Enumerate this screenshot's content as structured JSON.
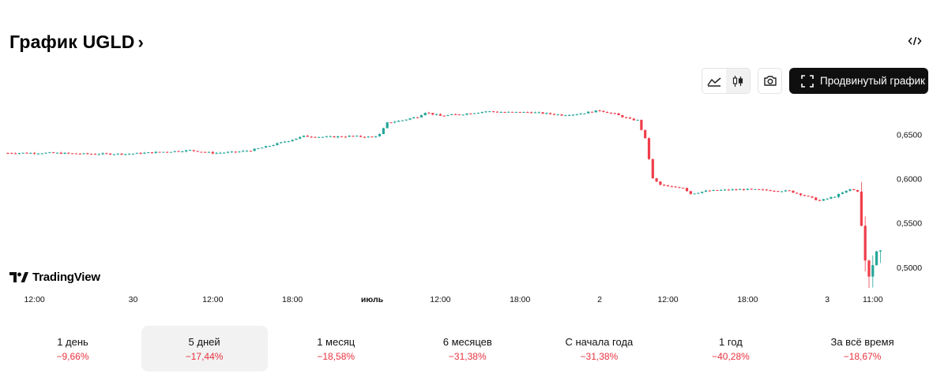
{
  "header": {
    "title": "График UGLD",
    "title_chevron": "›"
  },
  "toolbar": {
    "area_icon": "area-chart-icon",
    "candles_icon": "candlestick-icon",
    "screenshot_icon": "camera-icon",
    "advanced_label": "Продвинутый график",
    "advanced_icon": "fullscreen-icon",
    "embed_icon": "code-embed-icon"
  },
  "branding": {
    "name": "TradingView"
  },
  "colors": {
    "up": "#26a69a",
    "down": "#ef3d4a",
    "loss_text": "#e8323f",
    "accent_dark": "#0f0f10"
  },
  "chart_data": {
    "type": "candlestick",
    "title": "",
    "xlabel": "",
    "ylabel": "",
    "ylim": [
      0.474,
      0.686
    ],
    "yticks": [
      0.5,
      0.55,
      0.6,
      0.65
    ],
    "ytick_labels": [
      "0,5000",
      "0,5500",
      "0,6000",
      "0,6500"
    ],
    "xtick_labels": [
      "12:00",
      "30",
      "12:00",
      "18:00",
      "июль",
      "12:00",
      "18:00",
      "2",
      "12:00",
      "18:00",
      "3",
      "11:00"
    ],
    "xtick_positions": [
      0.5,
      13.5,
      24,
      34.5,
      45,
      54,
      64.5,
      75,
      84,
      94.5,
      105,
      111
    ],
    "x_range": [
      -3,
      113
    ],
    "line_points": [
      [
        -3,
        0.629
      ],
      [
        0,
        0.629
      ],
      [
        3,
        0.629
      ],
      [
        7,
        0.628
      ],
      [
        13,
        0.628
      ],
      [
        17,
        0.63
      ],
      [
        21,
        0.632
      ],
      [
        24,
        0.629
      ],
      [
        27,
        0.63
      ],
      [
        29,
        0.632
      ],
      [
        31,
        0.636
      ],
      [
        34,
        0.643
      ],
      [
        36,
        0.648
      ],
      [
        39,
        0.647
      ],
      [
        42,
        0.648
      ],
      [
        45,
        0.647
      ],
      [
        46,
        0.65
      ],
      [
        47,
        0.663
      ],
      [
        49,
        0.666
      ],
      [
        51,
        0.67
      ],
      [
        52,
        0.675
      ],
      [
        54,
        0.671
      ],
      [
        57,
        0.673
      ],
      [
        60,
        0.676
      ],
      [
        63,
        0.675
      ],
      [
        66,
        0.675
      ],
      [
        70,
        0.672
      ],
      [
        72,
        0.673
      ],
      [
        75,
        0.677
      ],
      [
        77,
        0.673
      ],
      [
        79,
        0.667
      ],
      [
        80,
        0.666
      ],
      [
        81,
        0.645
      ],
      [
        82,
        0.6
      ],
      [
        83,
        0.593
      ],
      [
        84,
        0.591
      ],
      [
        86,
        0.59
      ],
      [
        87,
        0.583
      ],
      [
        89,
        0.586
      ],
      [
        91,
        0.587
      ],
      [
        94,
        0.588
      ],
      [
        97,
        0.587
      ],
      [
        100,
        0.586
      ],
      [
        102,
        0.581
      ],
      [
        104,
        0.575
      ],
      [
        106,
        0.58
      ],
      [
        108,
        0.588
      ],
      [
        109,
        0.586
      ],
      [
        110,
        0.507
      ],
      [
        110.5,
        0.49
      ],
      [
        111,
        0.503
      ],
      [
        111.5,
        0.518
      ],
      [
        112,
        0.519
      ]
    ]
  },
  "periods": [
    {
      "label": "1 день",
      "change": "−9,66%",
      "active": false
    },
    {
      "label": "5 дней",
      "change": "−17,44%",
      "active": true
    },
    {
      "label": "1 месяц",
      "change": "−18,58%",
      "active": false
    },
    {
      "label": "6 месяцев",
      "change": "−31,38%",
      "active": false
    },
    {
      "label": "С начала года",
      "change": "−31,38%",
      "active": false
    },
    {
      "label": "1 год",
      "change": "−40,28%",
      "active": false
    },
    {
      "label": "За всё время",
      "change": "−18,67%",
      "active": false
    }
  ]
}
